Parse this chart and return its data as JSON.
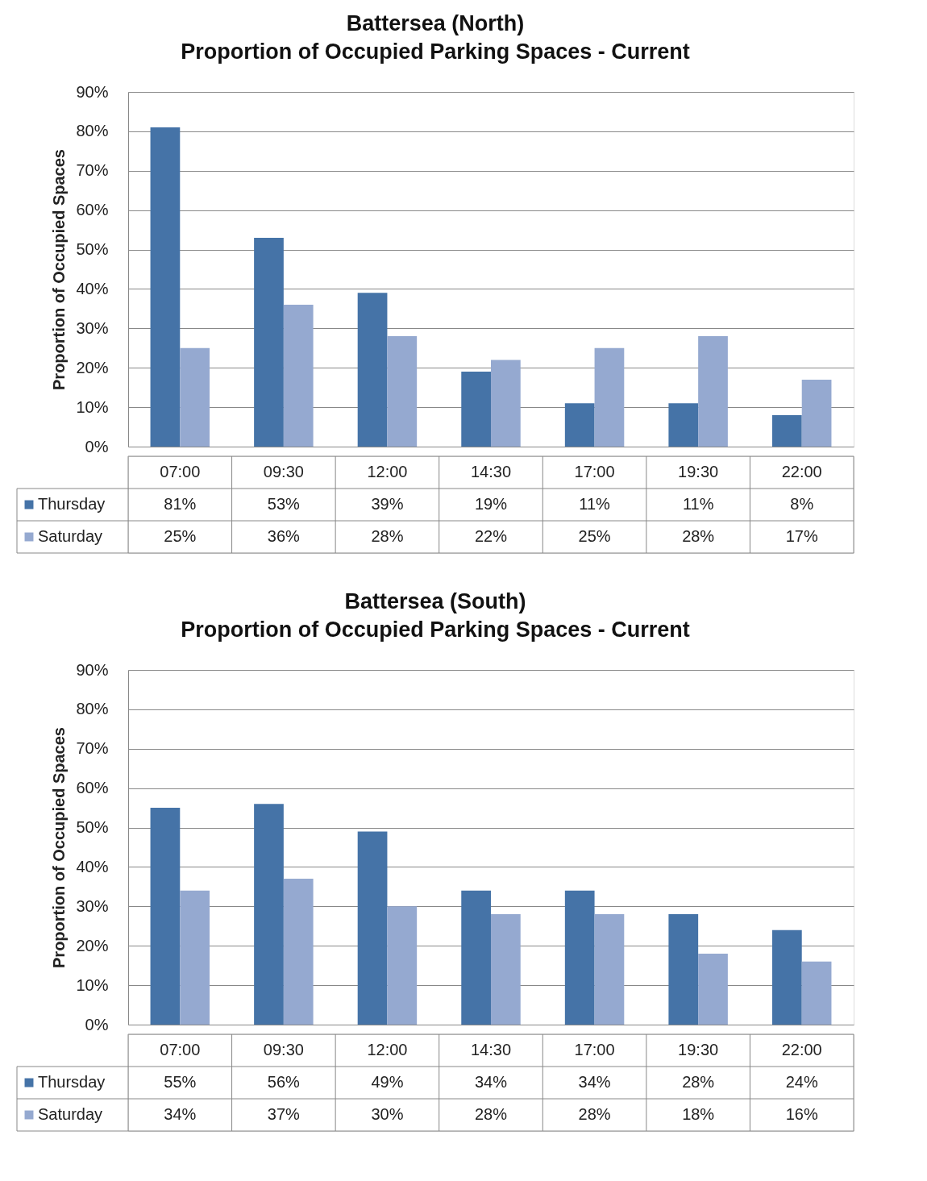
{
  "chart_data": [
    {
      "type": "bar",
      "title": "Battersea (North)",
      "subtitle": "Proportion of Occupied Parking Spaces - Current",
      "ylabel": "Proportion of Occupied Spaces",
      "categories": [
        "07:00",
        "09:30",
        "12:00",
        "14:30",
        "17:00",
        "19:30",
        "22:00"
      ],
      "series": [
        {
          "name": "Thursday",
          "color": "#4573a7",
          "values": [
            81,
            53,
            39,
            19,
            11,
            11,
            8
          ],
          "value_labels": [
            "81%",
            "53%",
            "39%",
            "19%",
            "11%",
            "11%",
            "8%"
          ]
        },
        {
          "name": "Saturday",
          "color": "#95a9d0",
          "values": [
            25,
            36,
            28,
            22,
            25,
            28,
            17
          ],
          "value_labels": [
            "25%",
            "36%",
            "28%",
            "22%",
            "25%",
            "28%",
            "17%"
          ]
        }
      ],
      "ylim": [
        0,
        90
      ],
      "yticks": [
        {
          "value": 0,
          "label": "0%"
        },
        {
          "value": 10,
          "label": "10%"
        },
        {
          "value": 20,
          "label": "20%"
        },
        {
          "value": 30,
          "label": "30%"
        },
        {
          "value": 40,
          "label": "40%"
        },
        {
          "value": 50,
          "label": "50%"
        },
        {
          "value": 60,
          "label": "60%"
        },
        {
          "value": 70,
          "label": "70%"
        },
        {
          "value": 80,
          "label": "80%"
        },
        {
          "value": 90,
          "label": "90%"
        }
      ],
      "grid": "y",
      "legend": "bottom"
    },
    {
      "type": "bar",
      "title": "Battersea (South)",
      "subtitle": "Proportion of Occupied Parking Spaces - Current",
      "ylabel": "Proportion of Occupied Spaces",
      "categories": [
        "07:00",
        "09:30",
        "12:00",
        "14:30",
        "17:00",
        "19:30",
        "22:00"
      ],
      "series": [
        {
          "name": "Thursday",
          "color": "#4573a7",
          "values": [
            55,
            56,
            49,
            34,
            34,
            28,
            24
          ],
          "value_labels": [
            "55%",
            "56%",
            "49%",
            "34%",
            "34%",
            "28%",
            "24%"
          ]
        },
        {
          "name": "Saturday",
          "color": "#95a9d0",
          "values": [
            34,
            37,
            30,
            28,
            28,
            18,
            16
          ],
          "value_labels": [
            "34%",
            "37%",
            "30%",
            "28%",
            "28%",
            "18%",
            "16%"
          ]
        }
      ],
      "ylim": [
        0,
        90
      ],
      "yticks": [
        {
          "value": 0,
          "label": "0%"
        },
        {
          "value": 10,
          "label": "10%"
        },
        {
          "value": 20,
          "label": "20%"
        },
        {
          "value": 30,
          "label": "30%"
        },
        {
          "value": 40,
          "label": "40%"
        },
        {
          "value": 50,
          "label": "50%"
        },
        {
          "value": 60,
          "label": "60%"
        },
        {
          "value": 70,
          "label": "70%"
        },
        {
          "value": 80,
          "label": "80%"
        },
        {
          "value": 90,
          "label": "90%"
        }
      ],
      "grid": "y",
      "legend": "bottom"
    }
  ]
}
